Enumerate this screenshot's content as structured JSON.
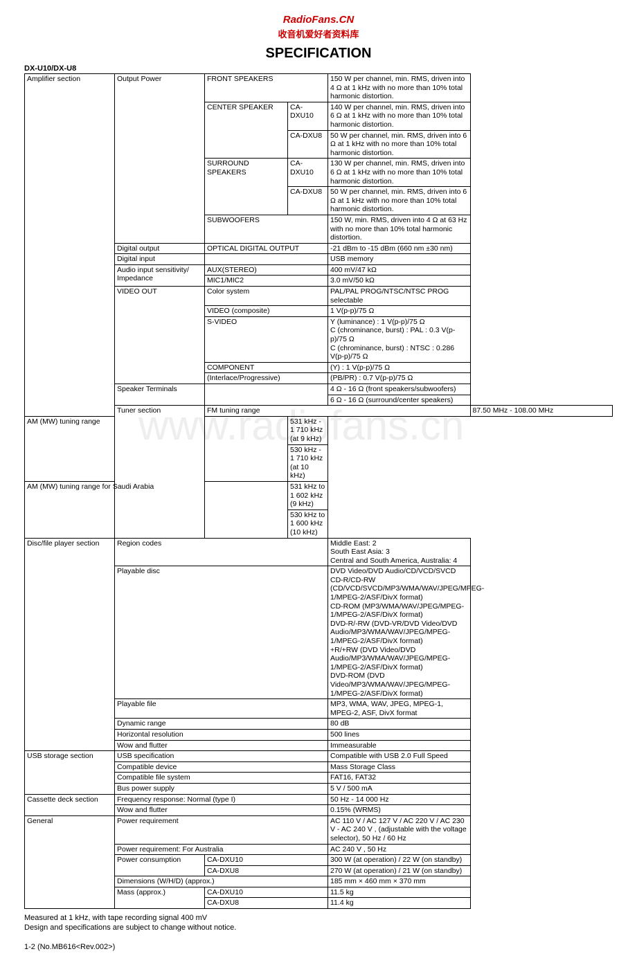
{
  "header": {
    "title": "RadioFans.CN",
    "subtitle": "收音机爱好者资料库",
    "spec": "SPECIFICATION",
    "model": "DX-U10/DX-U8"
  },
  "watermark": "www.radiofans.cn",
  "rows": [
    {
      "c1": "Amplifier section",
      "c1rs": 18,
      "c2": "Output Power",
      "c2rs": 6,
      "c3": "FRONT SPEAKERS",
      "c3cs": 2,
      "c5": "150 W per channel, min. RMS, driven into 4 Ω at 1 kHz with no more than 10% total harmonic distortion."
    },
    {
      "c3": "CENTER SPEAKER",
      "c3rs": 2,
      "c4": "CA-DXU10",
      "c5": "140 W per channel, min. RMS, driven into 6 Ω at 1 kHz with no more than 10% total harmonic distortion."
    },
    {
      "c4": "CA-DXU8",
      "c5": "50 W per channel, min. RMS, driven into 6 Ω at 1 kHz with no more than 10% total harmonic distortion."
    },
    {
      "c3": "SURROUND SPEAKERS",
      "c3rs": 2,
      "c4": "CA-DXU10",
      "c5": "130 W per channel, min. RMS, driven into 6 Ω at 1 kHz with no more than 10% total harmonic distortion."
    },
    {
      "c4": "CA-DXU8",
      "c5": "50 W per channel, min. RMS, driven into 6 Ω at 1 kHz with no more than 10% total harmonic distortion."
    },
    {
      "c3": "SUBWOOFERS",
      "c3cs": 2,
      "c5": "150 W, min. RMS, driven into 4 Ω at 63 Hz with no more than 10% total harmonic distortion."
    },
    {
      "c2": "Digital output",
      "c3": "OPTICAL DIGITAL OUTPUT",
      "c3cs": 2,
      "c5": "-21 dBm to -15 dBm (660 nm ±30 nm)"
    },
    {
      "c2": "Digital input",
      "c3": "",
      "c3cs": 2,
      "c5": "USB memory"
    },
    {
      "c2": "Audio input sensitivity/ Impedance",
      "c2rs": 2,
      "c3": "AUX(STEREO)",
      "c3cs": 2,
      "c5": "400 mV/47 kΩ"
    },
    {
      "c3": "MIC1/MIC2",
      "c3cs": 2,
      "c5": "3.0 mV/50 kΩ"
    },
    {
      "c2": "VIDEO OUT",
      "c2rs": 5,
      "c3": "Color system",
      "c3cs": 2,
      "c5": "PAL/PAL PROG/NTSC/NTSC PROG selectable"
    },
    {
      "c3": "VIDEO (composite)",
      "c3cs": 2,
      "c5": "1 V(p-p)/75 Ω"
    },
    {
      "c3": "S-VIDEO",
      "c3cs": 2,
      "c5": "Y (luminance) : 1 V(p-p)/75 Ω\nC (chrominance, burst) : PAL : 0.3 V(p-p)/75 Ω\nC (chrominance, burst) : NTSC : 0.286 V(p-p)/75 Ω"
    },
    {
      "c3": "COMPONENT",
      "c3cs": 2,
      "c5": "(Y) : 1 V(p-p)/75 Ω"
    },
    {
      "c3": "(Interlace/Progressive)",
      "c3cs": 2,
      "c5": "(PB/PR) : 0.7 V(p-p)/75 Ω"
    },
    {
      "c2": "Speaker Terminals",
      "c2rs": 2,
      "c3": "",
      "c3cs": 2,
      "c3rs": 2,
      "c5": "4 Ω - 16 Ω (front speakers/subwoofers)"
    },
    {
      "c5": "6 Ω - 16 Ω (surround/center speakers)"
    },
    {
      "c1": "Tuner section",
      "c1rs": 5,
      "c2": "FM tuning range",
      "c2cs": 3,
      "c5": "87.50 MHz - 108.00 MHz"
    },
    {
      "c2": "AM (MW) tuning range",
      "c2cs": 3,
      "c2rs": 2,
      "c5": "531 kHz - 1 710 kHz (at 9 kHz)"
    },
    {
      "c5": "530 kHz - 1 710 kHz (at 10 kHz)"
    },
    {
      "c2": "AM (MW) tuning range for Saudi Arabia",
      "c2cs": 3,
      "c2rs": 2,
      "c5": "531 kHz to 1 602 kHz (9 kHz)"
    },
    {
      "c5": "530 kHz to 1 600 kHz (10 kHz)"
    },
    {
      "c1": "Disc/file player section",
      "c1rs": 6,
      "c2": "Region codes",
      "c2cs": 3,
      "c5": "Middle East: 2\nSouth East Asia: 3\nCentral and South America, Australia: 4"
    },
    {
      "c2": "Playable disc",
      "c2cs": 3,
      "c5": "DVD Video/DVD Audio/CD/VCD/SVCD\nCD-R/CD-RW (CD/VCD/SVCD/MP3/WMA/WAV/JPEG/MPEG-1/MPEG-2/ASF/DivX format)\nCD-ROM (MP3/WMA/WAV/JPEG/MPEG-1/MPEG-2/ASF/DivX format)\nDVD-R/-RW (DVD-VR/DVD Video/DVD Audio/MP3/WMA/WAV/JPEG/MPEG-1/MPEG-2/ASF/DivX format)\n+R/+RW (DVD Video/DVD Audio/MP3/WMA/WAV/JPEG/MPEG-1/MPEG-2/ASF/DivX format)\nDVD-ROM (DVD Video/MP3/WMA/WAV/JPEG/MPEG-1/MPEG-2/ASF/DivX format)"
    },
    {
      "c2": "Playable file",
      "c2cs": 3,
      "c5": "MP3, WMA, WAV, JPEG, MPEG-1, MPEG-2, ASF, DivX format"
    },
    {
      "c2": "Dynamic range",
      "c2cs": 3,
      "c5": "80 dB"
    },
    {
      "c2": "Horizontal resolution",
      "c2cs": 3,
      "c5": "500 lines"
    },
    {
      "c2": "Wow and flutter",
      "c2cs": 3,
      "c5": "Immeasurable"
    },
    {
      "c1": "USB storage section",
      "c1rs": 4,
      "c2": "USB specification",
      "c2cs": 3,
      "c5": "Compatible with USB 2.0 Full Speed"
    },
    {
      "c2": "Compatible device",
      "c2cs": 3,
      "c5": "Mass Storage Class"
    },
    {
      "c2": "Compatible file system",
      "c2cs": 3,
      "c5": "FAT16, FAT32"
    },
    {
      "c2": "Bus power supply",
      "c2cs": 3,
      "c5": "5 V / 500 mA"
    },
    {
      "c1": "Cassette deck section",
      "c1rs": 2,
      "c2": "Frequency response: Normal (type I)",
      "c2cs": 3,
      "c5": "50 Hz - 14 000 Hz"
    },
    {
      "c2": "Wow and flutter",
      "c2cs": 3,
      "c5": "0.15% (WRMS)"
    },
    {
      "c1": "General",
      "c1rs": 7,
      "c2": "Power requirement",
      "c2cs": 3,
      "c5": "AC 110 V / AC 127 V / AC 220 V / AC 230 V - AC 240 V , (adjustable with the voltage selector), 50 Hz / 60 Hz"
    },
    {
      "c2": "Power requirement: For Australia",
      "c2cs": 3,
      "c5": "AC 240 V , 50 Hz"
    },
    {
      "c2": "Power consumption",
      "c2rs": 2,
      "c3": "CA-DXU10",
      "c3cs": 2,
      "c5": "300 W (at operation) / 22 W (on standby)"
    },
    {
      "c3": "CA-DXU8",
      "c3cs": 2,
      "c5": "270 W (at operation) / 21 W (on standby)"
    },
    {
      "c2": "Dimensions (W/H/D) (approx.)",
      "c2cs": 3,
      "c5": "185 mm × 460 mm × 370 mm"
    },
    {
      "c2": "Mass (approx.)",
      "c2rs": 2,
      "c3": "CA-DXU10",
      "c3cs": 2,
      "c5": "11.5 kg"
    },
    {
      "c3": "CA-DXU8",
      "c3cs": 2,
      "c5": "11.4 kg"
    }
  ],
  "note": "Measured at 1 kHz, with tape recording signal 400 mV\nDesign and specifications are subject to change without notice.",
  "footer": "1-2 (No.MB616<Rev.002>)"
}
